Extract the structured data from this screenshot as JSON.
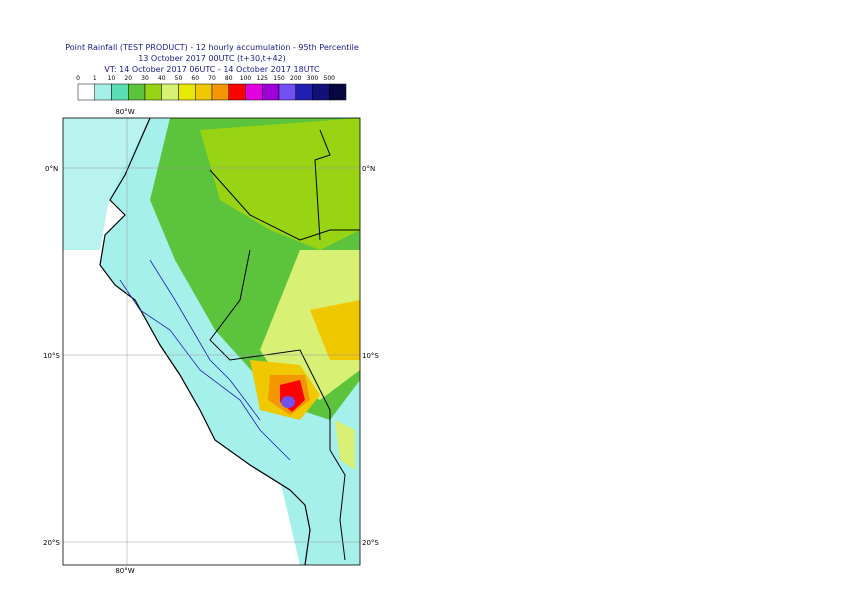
{
  "header": {
    "title": "Point Rainfall (TEST PRODUCT) - 12 hourly accumulation - 95th Percentile",
    "run": "13 October 2017 00UTC (t+30,t+42)",
    "validity": "VT: 14 October 2017 06UTC - 14 October 2017 18UTC"
  },
  "legend": {
    "labels": [
      "0",
      "1",
      "10",
      "20",
      "30",
      "40",
      "50",
      "60",
      "70",
      "80",
      "100",
      "125",
      "150",
      "200",
      "300",
      "500"
    ],
    "colors": [
      "#ffffff",
      "#a6f0ec",
      "#5cdcb4",
      "#5cc43c",
      "#98d414",
      "#d8f074",
      "#e8e800",
      "#f0c800",
      "#f49600",
      "#ff0000",
      "#e000e0",
      "#a000d8",
      "#7050f0",
      "#2020b0",
      "#101078",
      "#080840"
    ]
  },
  "map": {
    "lat_labels": [
      "0°N",
      "10°S",
      "20°S"
    ],
    "lon_label": "80°W"
  }
}
